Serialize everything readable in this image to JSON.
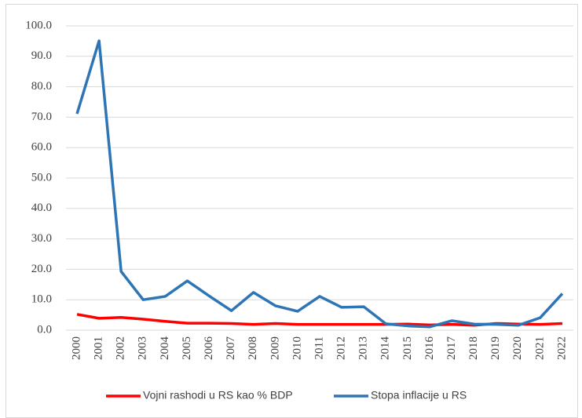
{
  "chart_data": {
    "type": "line",
    "categories": [
      "2000",
      "2001",
      "2002",
      "2003",
      "2004",
      "2005",
      "2006",
      "2007",
      "2008",
      "2009",
      "2010",
      "2011",
      "2012",
      "2013",
      "2014",
      "2015",
      "2016",
      "2017",
      "2018",
      "2019",
      "2020",
      "2021",
      "2022"
    ],
    "series": [
      {
        "name": "Vojni rashodi u RS kao % BDP",
        "color": "#ff0000",
        "values": [
          5.2,
          3.9,
          4.2,
          3.6,
          2.9,
          2.3,
          2.3,
          2.2,
          1.9,
          2.2,
          1.9,
          1.9,
          1.9,
          1.9,
          1.9,
          2.0,
          1.7,
          1.9,
          1.6,
          2.2,
          2.0,
          1.9,
          2.2
        ]
      },
      {
        "name": "Stopa inflacije u RS",
        "color": "#2e75b6",
        "values": [
          71.1,
          95.1,
          19.3,
          10.0,
          11.1,
          16.2,
          11.2,
          6.4,
          12.4,
          8.0,
          6.2,
          11.1,
          7.5,
          7.7,
          2.1,
          1.4,
          1.1,
          3.1,
          2.0,
          1.9,
          1.6,
          4.1,
          12.0
        ]
      }
    ],
    "ylim": [
      0,
      100
    ],
    "yticks": [
      {
        "value": 0,
        "label": "0.0"
      },
      {
        "value": 10,
        "label": "10.0"
      },
      {
        "value": 20,
        "label": "20.0"
      },
      {
        "value": 30,
        "label": "30.0"
      },
      {
        "value": 40,
        "label": "40.0"
      },
      {
        "value": 50,
        "label": "50.0"
      },
      {
        "value": 60,
        "label": "60.0"
      },
      {
        "value": 70,
        "label": "70.0"
      },
      {
        "value": 80,
        "label": "80.0"
      },
      {
        "value": 90,
        "label": "90.0"
      },
      {
        "value": 100,
        "label": "100.0"
      }
    ],
    "grid": true,
    "legend": "bottom"
  }
}
